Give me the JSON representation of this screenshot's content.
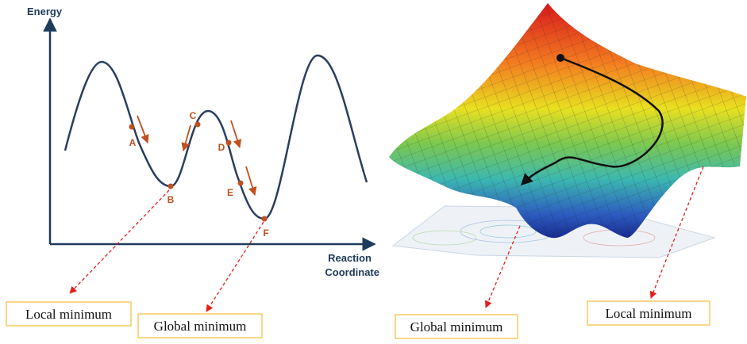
{
  "left_plot": {
    "y_axis_label": "Energy",
    "x_axis_label": [
      "Reaction",
      "Coordinate"
    ],
    "points": [
      "A",
      "B",
      "C",
      "D",
      "E",
      "F"
    ]
  },
  "annotations": [
    "Local minimum",
    "Global minimum",
    "Global minimum",
    "Local minimum"
  ]
}
